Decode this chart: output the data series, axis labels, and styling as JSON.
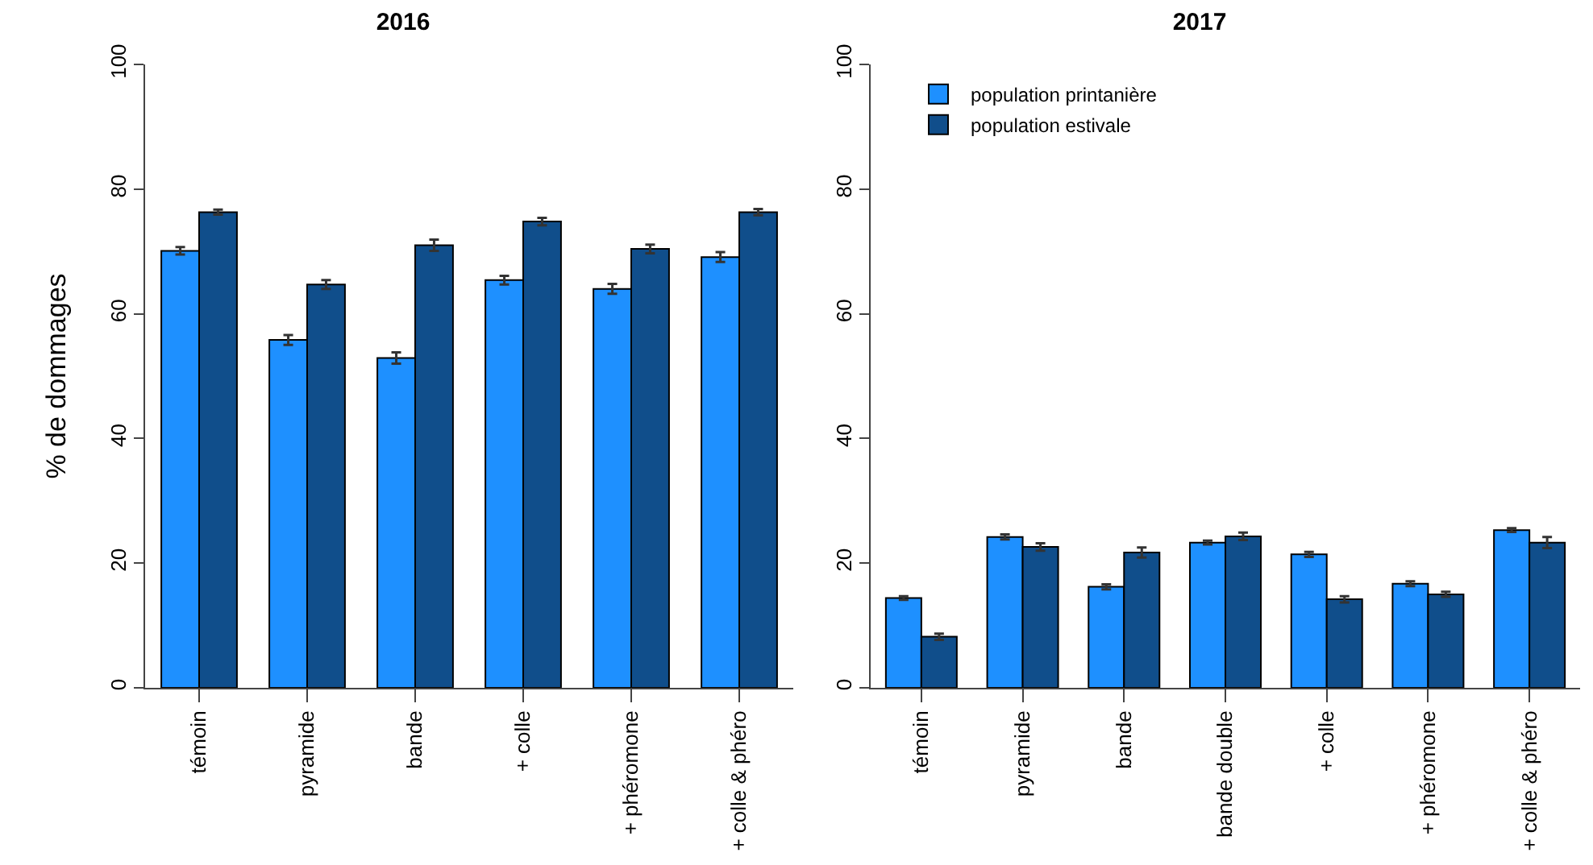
{
  "chart_data": [
    {
      "type": "bar",
      "title": "2016",
      "ylabel": "% de dommages",
      "categories": [
        "témoin",
        "pyramide",
        "bande",
        "+ colle",
        "+ phéromone",
        "+ colle & phéro"
      ],
      "ylim": [
        0,
        100
      ],
      "yticks": [
        0,
        20,
        40,
        60,
        80,
        100
      ],
      "grid": false,
      "legend": false,
      "series": [
        {
          "color": "#1e90ff",
          "values": [
            70.1,
            55.8,
            52.9,
            65.4,
            64.0,
            69.1
          ],
          "errors": [
            0.6,
            0.8,
            0.9,
            0.7,
            0.8,
            0.8
          ]
        },
        {
          "color": "#104e8b",
          "values": [
            76.3,
            64.7,
            71.0,
            74.8,
            70.4,
            76.3
          ],
          "errors": [
            0.4,
            0.7,
            0.9,
            0.6,
            0.7,
            0.5
          ]
        }
      ]
    },
    {
      "type": "bar",
      "title": "2017",
      "categories": [
        "témoin",
        "pyramide",
        "bande",
        "bande double",
        "+ colle",
        "+ phéromone",
        "+ colle & phéro"
      ],
      "ylim": [
        0,
        100
      ],
      "yticks": [
        0,
        20,
        40,
        60,
        80,
        100
      ],
      "grid": false,
      "legend": "top left",
      "series": [
        {
          "name": "population printanière",
          "color": "#1e90ff",
          "values": [
            14.4,
            24.2,
            16.2,
            23.3,
            21.4,
            16.7,
            25.3
          ],
          "errors": [
            0.3,
            0.4,
            0.4,
            0.3,
            0.4,
            0.4,
            0.3
          ]
        },
        {
          "name": "population estivale",
          "color": "#104e8b",
          "values": [
            8.2,
            22.6,
            21.7,
            24.3,
            14.2,
            15.0,
            23.3
          ],
          "errors": [
            0.5,
            0.6,
            0.8,
            0.6,
            0.5,
            0.4,
            0.9
          ]
        }
      ]
    }
  ]
}
